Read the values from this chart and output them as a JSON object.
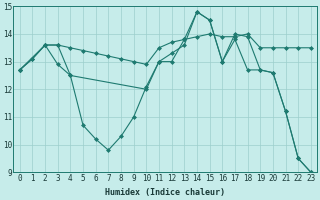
{
  "xlabel": "Humidex (Indice chaleur)",
  "xlim": [
    -0.5,
    23.5
  ],
  "ylim": [
    9,
    15
  ],
  "yticks": [
    9,
    10,
    11,
    12,
    13,
    14,
    15
  ],
  "xticks": [
    0,
    1,
    2,
    3,
    4,
    5,
    6,
    7,
    8,
    9,
    10,
    11,
    12,
    13,
    14,
    15,
    16,
    17,
    18,
    19,
    20,
    21,
    22,
    23
  ],
  "background_color": "#c6ecea",
  "grid_color": "#9dcfcc",
  "line_color": "#1e7a70",
  "series": [
    {
      "x": [
        0,
        1,
        2,
        3,
        4,
        5,
        6,
        7,
        8,
        9,
        10,
        11,
        12,
        13,
        14,
        15,
        16,
        17,
        18,
        19,
        20,
        21,
        22,
        23
      ],
      "y": [
        12.7,
        13.1,
        13.6,
        13.6,
        13.5,
        13.4,
        13.3,
        13.2,
        13.1,
        13.0,
        12.9,
        13.5,
        13.7,
        13.8,
        13.9,
        14.0,
        13.9,
        13.9,
        14.0,
        13.5,
        13.5,
        13.5,
        13.5,
        13.5
      ],
      "marker": "D",
      "markersize": 2.0,
      "linewidth": 0.8
    },
    {
      "x": [
        0,
        1,
        2,
        3,
        4,
        5,
        6,
        7,
        8,
        9,
        10,
        11,
        12,
        13,
        14,
        15,
        16,
        17,
        18,
        19,
        20,
        21,
        22,
        23
      ],
      "y": [
        12.7,
        13.1,
        13.6,
        12.9,
        12.5,
        10.7,
        10.2,
        9.8,
        10.3,
        11.0,
        12.1,
        13.0,
        13.0,
        13.8,
        14.8,
        14.5,
        13.0,
        13.8,
        12.7,
        12.7,
        12.6,
        11.2,
        9.5,
        9.0
      ],
      "marker": "D",
      "markersize": 2.0,
      "linewidth": 0.8
    },
    {
      "x": [
        0,
        2,
        3,
        4,
        10,
        11,
        12,
        13,
        14,
        15,
        16,
        17,
        18,
        19,
        20,
        21,
        22,
        23
      ],
      "y": [
        12.7,
        13.6,
        13.6,
        12.5,
        12.0,
        13.0,
        13.3,
        13.6,
        14.8,
        14.5,
        13.0,
        14.0,
        13.9,
        12.7,
        12.6,
        11.2,
        9.5,
        9.0
      ],
      "marker": "D",
      "markersize": 2.0,
      "linewidth": 0.8
    }
  ]
}
